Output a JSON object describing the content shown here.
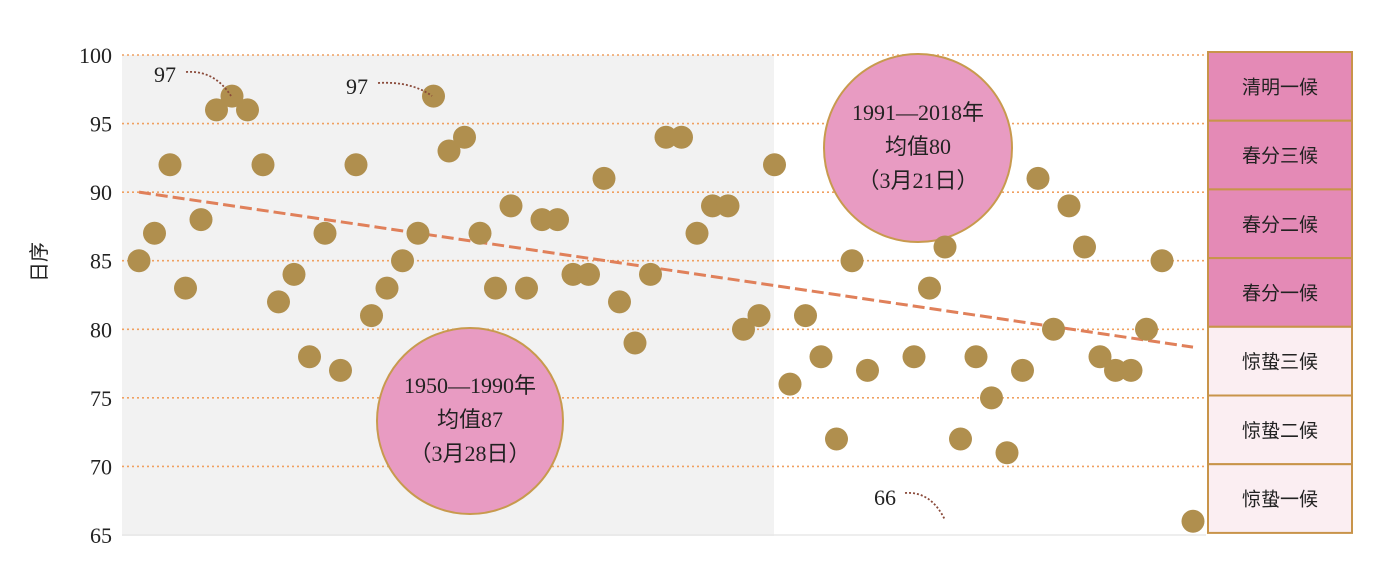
{
  "chart_data": {
    "type": "scatter",
    "ylabel": "日序",
    "ylim": [
      65,
      100
    ],
    "yticks": [
      65,
      70,
      75,
      80,
      85,
      90,
      95,
      100
    ],
    "grid": "horizontal dotted",
    "x": [
      1950,
      1951,
      1952,
      1953,
      1954,
      1955,
      1956,
      1957,
      1958,
      1959,
      1960,
      1961,
      1962,
      1963,
      1964,
      1965,
      1966,
      1967,
      1968,
      1969,
      1970,
      1971,
      1972,
      1973,
      1974,
      1975,
      1976,
      1977,
      1978,
      1979,
      1980,
      1981,
      1982,
      1983,
      1984,
      1985,
      1986,
      1987,
      1988,
      1989,
      1990,
      1991,
      1992,
      1993,
      1994,
      1995,
      1996,
      1997,
      1998,
      1999,
      2000,
      2001,
      2002,
      2003,
      2004,
      2005,
      2006,
      2007,
      2008,
      2009,
      2010,
      2011,
      2012,
      2013,
      2014,
      2015,
      2016,
      2017,
      2018
    ],
    "values": [
      85,
      87,
      92,
      83,
      88,
      96,
      97,
      96,
      92,
      82,
      84,
      78,
      87,
      77,
      92,
      81,
      83,
      85,
      87,
      97,
      93,
      94,
      87,
      83,
      89,
      83,
      88,
      88,
      84,
      84,
      91,
      82,
      79,
      84,
      94,
      94,
      87,
      89,
      89,
      80,
      81,
      92,
      76,
      81,
      78,
      72,
      85,
      77,
      null,
      null,
      78,
      83,
      86,
      72,
      78,
      75,
      71,
      77,
      91,
      80,
      89,
      86,
      78,
      77,
      77,
      80,
      85,
      null,
      66
    ],
    "trend": {
      "start": 90,
      "end": 78.7,
      "color": "#e0805a"
    },
    "shaded_period": [
      1950,
      1990
    ],
    "bubbles": [
      {
        "lines": [
          "1950—1990年",
          "均值87",
          "（3月28日）"
        ]
      },
      {
        "lines": [
          "1991—2018年",
          "均值80",
          "（3月21日）"
        ]
      }
    ],
    "annotations": [
      {
        "text": "97"
      },
      {
        "text": "97"
      },
      {
        "text": "66"
      }
    ],
    "period_table": [
      {
        "label": "清明一候",
        "color": "#e48ab6"
      },
      {
        "label": "春分三候",
        "color": "#e48ab6"
      },
      {
        "label": "春分二候",
        "color": "#e48ab6"
      },
      {
        "label": "春分一候",
        "color": "#e48ab6"
      },
      {
        "label": "惊蛰三候",
        "color": "#fbeef2"
      },
      {
        "label": "惊蛰二候",
        "color": "#fbeef2"
      },
      {
        "label": "惊蛰一候",
        "color": "#fbeef2"
      }
    ],
    "colors": {
      "point": "#b08f4e",
      "bubble": "#e89bc2",
      "bubble_border": "#c89a4e",
      "grid": "#f0a060",
      "shade": "#f2f2f2",
      "table_border": "#c8944a"
    }
  }
}
